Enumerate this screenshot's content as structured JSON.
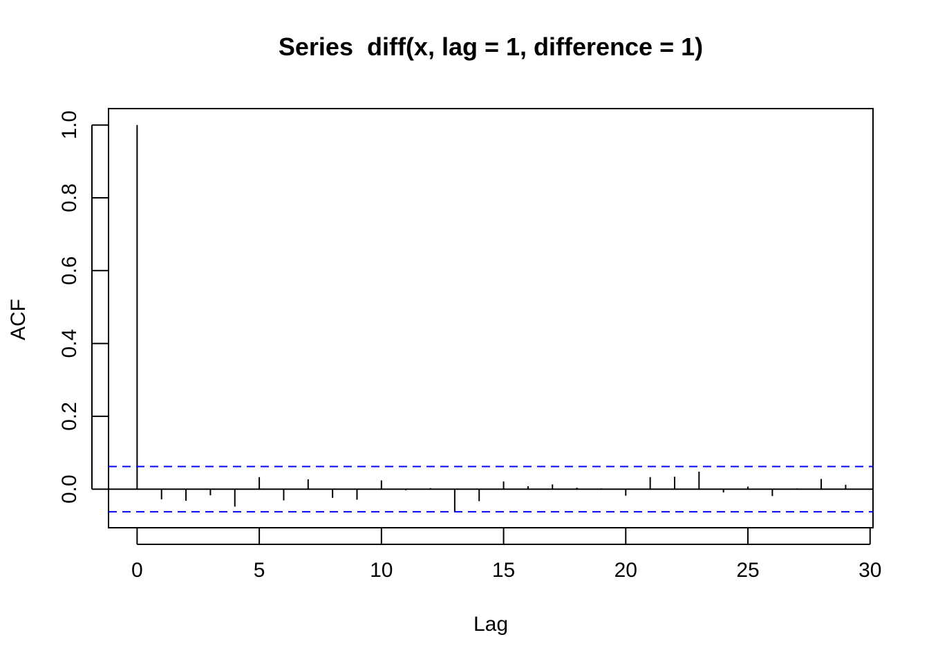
{
  "chart_data": {
    "type": "bar",
    "title": "Series  diff(x, lag = 1, difference = 1)",
    "xlabel": "Lag",
    "ylabel": "ACF",
    "xlim": [
      -1.17,
      30.12
    ],
    "ylim": [
      -0.106,
      1.045
    ],
    "x_ticks": [
      0,
      5,
      10,
      15,
      20,
      25,
      30
    ],
    "x_tick_labels": [
      "0",
      "5",
      "10",
      "15",
      "20",
      "25",
      "30"
    ],
    "y_ticks": [
      0,
      0.2,
      0.4,
      0.6,
      0.8,
      1.0
    ],
    "y_tick_labels": [
      "0.0",
      "0.2",
      "0.4",
      "0.6",
      "0.8",
      "1.0"
    ],
    "lags": [
      0,
      1,
      2,
      3,
      4,
      5,
      6,
      7,
      8,
      9,
      10,
      11,
      12,
      13,
      14,
      15,
      16,
      17,
      18,
      19,
      20,
      21,
      22,
      23,
      24,
      25,
      26,
      27,
      28,
      29
    ],
    "values": [
      1.0,
      -0.028,
      -0.032,
      -0.017,
      -0.048,
      0.033,
      -0.031,
      0.027,
      -0.024,
      -0.029,
      0.024,
      -0.003,
      0.003,
      -0.063,
      -0.033,
      0.021,
      0.008,
      0.013,
      0.004,
      0.002,
      -0.018,
      0.033,
      0.034,
      0.048,
      -0.009,
      0.007,
      -0.019,
      0.002,
      0.028,
      0.012
    ],
    "confidence_bound": 0.062,
    "colors": {
      "bars": "#000000",
      "confidence_lines": "#0000ff",
      "axes": "#000000"
    },
    "grid": false,
    "legend": "none"
  }
}
